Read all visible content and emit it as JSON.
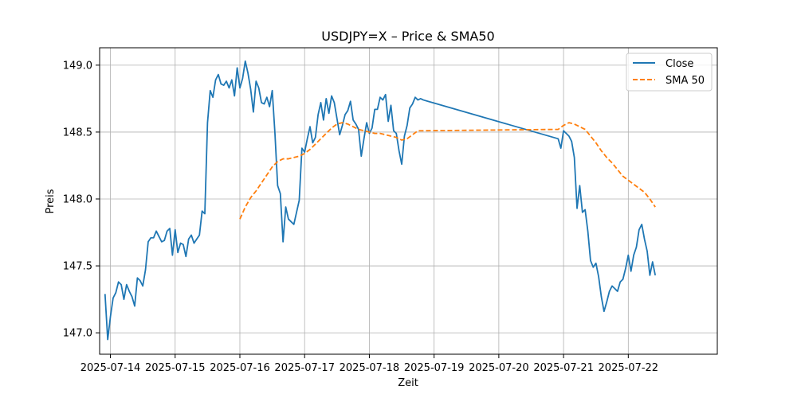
{
  "chart_data": {
    "type": "line",
    "title": "USDJPY=X – Price & SMA50",
    "xlabel": "Zeit",
    "ylabel": "Preis",
    "xlim": [
      "2025-07-13 20:00",
      "2025-07-23 09:00"
    ],
    "ylim": [
      146.84,
      149.13
    ],
    "x_ticks": [
      "2025-07-14",
      "2025-07-15",
      "2025-07-16",
      "2025-07-17",
      "2025-07-18",
      "2025-07-19",
      "2025-07-20",
      "2025-07-21",
      "2025-07-22"
    ],
    "y_ticks": [
      "147.0",
      "147.5",
      "148.0",
      "148.5",
      "149.0"
    ],
    "grid": true,
    "legend": {
      "position": "top-right",
      "entries": [
        "Close",
        "SMA 50"
      ]
    },
    "colors": {
      "close": "#1f77b4",
      "sma": "#ff7f0e"
    },
    "series": [
      {
        "name": "Close",
        "style": "solid",
        "points": [
          [
            "2025-07-13 22:00",
            147.29
          ],
          [
            "2025-07-13 23:00",
            146.95
          ],
          [
            "2025-07-14 00:00",
            147.12
          ],
          [
            "2025-07-14 01:00",
            147.26
          ],
          [
            "2025-07-14 02:00",
            147.3
          ],
          [
            "2025-07-14 03:00",
            147.38
          ],
          [
            "2025-07-14 04:00",
            147.36
          ],
          [
            "2025-07-14 05:00",
            147.25
          ],
          [
            "2025-07-14 06:00",
            147.36
          ],
          [
            "2025-07-14 07:00",
            147.31
          ],
          [
            "2025-07-14 08:00",
            147.27
          ],
          [
            "2025-07-14 09:00",
            147.2
          ],
          [
            "2025-07-14 10:00",
            147.41
          ],
          [
            "2025-07-14 11:00",
            147.39
          ],
          [
            "2025-07-14 12:00",
            147.35
          ],
          [
            "2025-07-14 13:00",
            147.47
          ],
          [
            "2025-07-14 14:00",
            147.68
          ],
          [
            "2025-07-14 15:00",
            147.71
          ],
          [
            "2025-07-14 16:00",
            147.71
          ],
          [
            "2025-07-14 17:00",
            147.76
          ],
          [
            "2025-07-14 18:00",
            147.72
          ],
          [
            "2025-07-14 19:00",
            147.68
          ],
          [
            "2025-07-14 20:00",
            147.69
          ],
          [
            "2025-07-14 21:00",
            147.76
          ],
          [
            "2025-07-14 22:00",
            147.78
          ],
          [
            "2025-07-14 23:00",
            147.58
          ],
          [
            "2025-07-15 00:00",
            147.77
          ],
          [
            "2025-07-15 01:00",
            147.6
          ],
          [
            "2025-07-15 02:00",
            147.67
          ],
          [
            "2025-07-15 03:00",
            147.66
          ],
          [
            "2025-07-15 04:00",
            147.57
          ],
          [
            "2025-07-15 05:00",
            147.7
          ],
          [
            "2025-07-15 06:00",
            147.73
          ],
          [
            "2025-07-15 07:00",
            147.67
          ],
          [
            "2025-07-15 08:00",
            147.7
          ],
          [
            "2025-07-15 09:00",
            147.73
          ],
          [
            "2025-07-15 10:00",
            147.91
          ],
          [
            "2025-07-15 11:00",
            147.89
          ],
          [
            "2025-07-15 12:00",
            148.57
          ],
          [
            "2025-07-15 13:00",
            148.81
          ],
          [
            "2025-07-15 14:00",
            148.76
          ],
          [
            "2025-07-15 15:00",
            148.89
          ],
          [
            "2025-07-15 16:00",
            148.93
          ],
          [
            "2025-07-15 17:00",
            148.86
          ],
          [
            "2025-07-15 18:00",
            148.85
          ],
          [
            "2025-07-15 19:00",
            148.88
          ],
          [
            "2025-07-15 20:00",
            148.83
          ],
          [
            "2025-07-15 21:00",
            148.89
          ],
          [
            "2025-07-15 22:00",
            148.77
          ],
          [
            "2025-07-15 23:00",
            148.98
          ],
          [
            "2025-07-16 00:00",
            148.83
          ],
          [
            "2025-07-16 01:00",
            148.9
          ],
          [
            "2025-07-16 02:00",
            149.03
          ],
          [
            "2025-07-16 03:00",
            148.94
          ],
          [
            "2025-07-16 04:00",
            148.82
          ],
          [
            "2025-07-16 05:00",
            148.65
          ],
          [
            "2025-07-16 06:00",
            148.88
          ],
          [
            "2025-07-16 07:00",
            148.83
          ],
          [
            "2025-07-16 08:00",
            148.72
          ],
          [
            "2025-07-16 09:00",
            148.71
          ],
          [
            "2025-07-16 10:00",
            148.76
          ],
          [
            "2025-07-16 11:00",
            148.69
          ],
          [
            "2025-07-16 12:00",
            148.81
          ],
          [
            "2025-07-16 13:00",
            148.49
          ],
          [
            "2025-07-16 14:00",
            148.1
          ],
          [
            "2025-07-16 15:00",
            148.04
          ],
          [
            "2025-07-16 16:00",
            147.68
          ],
          [
            "2025-07-16 17:00",
            147.94
          ],
          [
            "2025-07-16 18:00",
            147.85
          ],
          [
            "2025-07-16 19:00",
            147.83
          ],
          [
            "2025-07-16 20:00",
            147.81
          ],
          [
            "2025-07-16 21:00",
            147.9
          ],
          [
            "2025-07-16 22:00",
            147.99
          ],
          [
            "2025-07-16 23:00",
            148.38
          ],
          [
            "2025-07-17 00:00",
            148.35
          ],
          [
            "2025-07-17 01:00",
            148.45
          ],
          [
            "2025-07-17 02:00",
            148.54
          ],
          [
            "2025-07-17 03:00",
            148.42
          ],
          [
            "2025-07-17 04:00",
            148.46
          ],
          [
            "2025-07-17 05:00",
            148.63
          ],
          [
            "2025-07-17 06:00",
            148.72
          ],
          [
            "2025-07-17 07:00",
            148.59
          ],
          [
            "2025-07-17 08:00",
            148.75
          ],
          [
            "2025-07-17 09:00",
            148.64
          ],
          [
            "2025-07-17 10:00",
            148.77
          ],
          [
            "2025-07-17 11:00",
            148.72
          ],
          [
            "2025-07-17 12:00",
            148.6
          ],
          [
            "2025-07-17 13:00",
            148.48
          ],
          [
            "2025-07-17 14:00",
            148.55
          ],
          [
            "2025-07-17 15:00",
            148.63
          ],
          [
            "2025-07-17 16:00",
            148.66
          ],
          [
            "2025-07-17 17:00",
            148.73
          ],
          [
            "2025-07-17 18:00",
            148.59
          ],
          [
            "2025-07-17 19:00",
            148.56
          ],
          [
            "2025-07-17 20:00",
            148.52
          ],
          [
            "2025-07-17 21:00",
            148.32
          ],
          [
            "2025-07-17 22:00",
            148.45
          ],
          [
            "2025-07-17 23:00",
            148.57
          ],
          [
            "2025-07-18 00:00",
            148.49
          ],
          [
            "2025-07-18 01:00",
            148.53
          ],
          [
            "2025-07-18 02:00",
            148.67
          ],
          [
            "2025-07-18 03:00",
            148.67
          ],
          [
            "2025-07-18 04:00",
            148.76
          ],
          [
            "2025-07-18 05:00",
            148.74
          ],
          [
            "2025-07-18 06:00",
            148.78
          ],
          [
            "2025-07-18 07:00",
            148.58
          ],
          [
            "2025-07-18 08:00",
            148.7
          ],
          [
            "2025-07-18 09:00",
            148.51
          ],
          [
            "2025-07-18 10:00",
            148.49
          ],
          [
            "2025-07-18 11:00",
            148.36
          ],
          [
            "2025-07-18 12:00",
            148.26
          ],
          [
            "2025-07-18 13:00",
            148.47
          ],
          [
            "2025-07-18 14:00",
            148.55
          ],
          [
            "2025-07-18 15:00",
            148.68
          ],
          [
            "2025-07-18 16:00",
            148.71
          ],
          [
            "2025-07-18 17:00",
            148.76
          ],
          [
            "2025-07-18 18:00",
            148.74
          ],
          [
            "2025-07-18 19:00",
            148.75
          ],
          [
            "2025-07-18 20:00",
            148.74
          ],
          [
            "2025-07-20 22:00",
            148.45
          ],
          [
            "2025-07-20 23:00",
            148.38
          ],
          [
            "2025-07-21 00:00",
            148.51
          ],
          [
            "2025-07-21 01:00",
            148.49
          ],
          [
            "2025-07-21 02:00",
            148.47
          ],
          [
            "2025-07-21 03:00",
            148.43
          ],
          [
            "2025-07-21 04:00",
            148.31
          ],
          [
            "2025-07-21 05:00",
            147.93
          ],
          [
            "2025-07-21 06:00",
            148.1
          ],
          [
            "2025-07-21 07:00",
            147.9
          ],
          [
            "2025-07-21 08:00",
            147.92
          ],
          [
            "2025-07-21 09:00",
            147.76
          ],
          [
            "2025-07-21 10:00",
            147.54
          ],
          [
            "2025-07-21 11:00",
            147.49
          ],
          [
            "2025-07-21 12:00",
            147.52
          ],
          [
            "2025-07-21 13:00",
            147.42
          ],
          [
            "2025-07-21 14:00",
            147.27
          ],
          [
            "2025-07-21 15:00",
            147.16
          ],
          [
            "2025-07-21 16:00",
            147.23
          ],
          [
            "2025-07-21 17:00",
            147.31
          ],
          [
            "2025-07-21 18:00",
            147.35
          ],
          [
            "2025-07-21 19:00",
            147.33
          ],
          [
            "2025-07-21 20:00",
            147.31
          ],
          [
            "2025-07-21 21:00",
            147.38
          ],
          [
            "2025-07-21 22:00",
            147.4
          ],
          [
            "2025-07-21 23:00",
            147.48
          ],
          [
            "2025-07-22 00:00",
            147.58
          ],
          [
            "2025-07-22 01:00",
            147.46
          ],
          [
            "2025-07-22 02:00",
            147.58
          ],
          [
            "2025-07-22 03:00",
            147.64
          ],
          [
            "2025-07-22 04:00",
            147.77
          ],
          [
            "2025-07-22 05:00",
            147.81
          ],
          [
            "2025-07-22 06:00",
            147.7
          ],
          [
            "2025-07-22 07:00",
            147.61
          ],
          [
            "2025-07-22 08:00",
            147.43
          ],
          [
            "2025-07-22 09:00",
            147.53
          ],
          [
            "2025-07-22 10:00",
            147.43
          ]
        ]
      },
      {
        "name": "SMA 50",
        "style": "dashed",
        "points": [
          [
            "2025-07-16 00:00",
            147.85
          ],
          [
            "2025-07-16 02:00",
            147.94
          ],
          [
            "2025-07-16 04:00",
            148.01
          ],
          [
            "2025-07-16 06:00",
            148.06
          ],
          [
            "2025-07-16 08:00",
            148.12
          ],
          [
            "2025-07-16 10:00",
            148.18
          ],
          [
            "2025-07-16 12:00",
            148.24
          ],
          [
            "2025-07-16 14:00",
            148.28
          ],
          [
            "2025-07-16 16:00",
            148.3
          ],
          [
            "2025-07-16 18:00",
            148.3
          ],
          [
            "2025-07-16 20:00",
            148.31
          ],
          [
            "2025-07-16 22:00",
            148.32
          ],
          [
            "2025-07-17 00:00",
            148.34
          ],
          [
            "2025-07-17 02:00",
            148.37
          ],
          [
            "2025-07-17 04:00",
            148.41
          ],
          [
            "2025-07-17 06:00",
            148.45
          ],
          [
            "2025-07-17 08:00",
            148.49
          ],
          [
            "2025-07-17 10:00",
            148.53
          ],
          [
            "2025-07-17 12:00",
            148.56
          ],
          [
            "2025-07-17 14:00",
            148.57
          ],
          [
            "2025-07-17 16:00",
            148.56
          ],
          [
            "2025-07-17 18:00",
            148.54
          ],
          [
            "2025-07-17 20:00",
            148.52
          ],
          [
            "2025-07-17 22:00",
            148.51
          ],
          [
            "2025-07-18 00:00",
            148.5
          ],
          [
            "2025-07-18 02:00",
            148.49
          ],
          [
            "2025-07-18 04:00",
            148.49
          ],
          [
            "2025-07-18 06:00",
            148.48
          ],
          [
            "2025-07-18 08:00",
            148.47
          ],
          [
            "2025-07-18 10:00",
            148.46
          ],
          [
            "2025-07-18 12:00",
            148.44
          ],
          [
            "2025-07-18 14:00",
            148.45
          ],
          [
            "2025-07-18 16:00",
            148.48
          ],
          [
            "2025-07-18 18:00",
            148.51
          ],
          [
            "2025-07-18 20:00",
            148.51
          ],
          [
            "2025-07-20 22:00",
            148.52
          ],
          [
            "2025-07-21 00:00",
            148.55
          ],
          [
            "2025-07-21 02:00",
            148.57
          ],
          [
            "2025-07-21 04:00",
            148.56
          ],
          [
            "2025-07-21 06:00",
            148.54
          ],
          [
            "2025-07-21 08:00",
            148.52
          ],
          [
            "2025-07-21 10:00",
            148.47
          ],
          [
            "2025-07-21 12:00",
            148.42
          ],
          [
            "2025-07-21 14:00",
            148.36
          ],
          [
            "2025-07-21 16:00",
            148.31
          ],
          [
            "2025-07-21 18:00",
            148.27
          ],
          [
            "2025-07-21 20:00",
            148.22
          ],
          [
            "2025-07-21 22:00",
            148.17
          ],
          [
            "2025-07-22 00:00",
            148.14
          ],
          [
            "2025-07-22 02:00",
            148.11
          ],
          [
            "2025-07-22 04:00",
            148.08
          ],
          [
            "2025-07-22 06:00",
            148.05
          ],
          [
            "2025-07-22 08:00",
            148.0
          ],
          [
            "2025-07-22 10:00",
            147.94
          ]
        ]
      }
    ]
  }
}
